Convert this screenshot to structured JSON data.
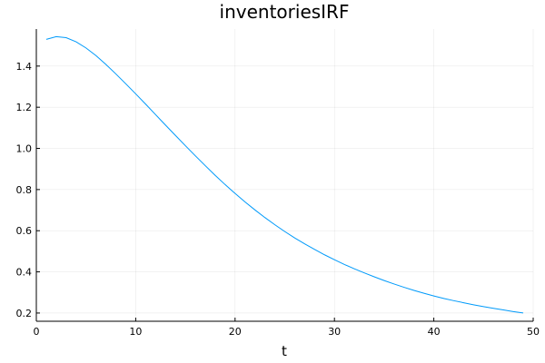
{
  "chart_data": {
    "type": "line",
    "title": "inventoriesIRF",
    "xlabel": "t",
    "ylabel": "",
    "xlim": [
      0,
      50
    ],
    "ylim": [
      0.16,
      1.58
    ],
    "xticks": [
      0,
      10,
      20,
      30,
      40,
      50
    ],
    "yticks": [
      0.2,
      0.4,
      0.6,
      0.8,
      1.0,
      1.2,
      1.4
    ],
    "ytick_labels": [
      "0.2",
      "0.4",
      "0.6",
      "0.8",
      "1.0",
      "1.2",
      "1.4"
    ],
    "grid": true,
    "legend": "none",
    "series": [
      {
        "color": "#009AFA",
        "x": [
          1,
          2,
          3,
          4,
          5,
          6,
          7,
          8,
          9,
          10,
          11,
          12,
          13,
          14,
          15,
          16,
          17,
          18,
          19,
          20,
          21,
          22,
          23,
          24,
          25,
          26,
          27,
          28,
          29,
          30,
          31,
          32,
          33,
          34,
          35,
          36,
          37,
          38,
          39,
          40,
          41,
          42,
          43,
          44,
          45,
          46,
          47,
          48,
          49
        ],
        "y": [
          1.53,
          1.543,
          1.538,
          1.518,
          1.488,
          1.451,
          1.408,
          1.362,
          1.314,
          1.265,
          1.215,
          1.164,
          1.113,
          1.063,
          1.013,
          0.964,
          0.916,
          0.869,
          0.824,
          0.781,
          0.74,
          0.701,
          0.664,
          0.629,
          0.596,
          0.565,
          0.536,
          0.509,
          0.483,
          0.459,
          0.436,
          0.415,
          0.395,
          0.376,
          0.358,
          0.341,
          0.325,
          0.31,
          0.296,
          0.283,
          0.271,
          0.26,
          0.25,
          0.24,
          0.231,
          0.223,
          0.215,
          0.207,
          0.2
        ]
      }
    ]
  }
}
